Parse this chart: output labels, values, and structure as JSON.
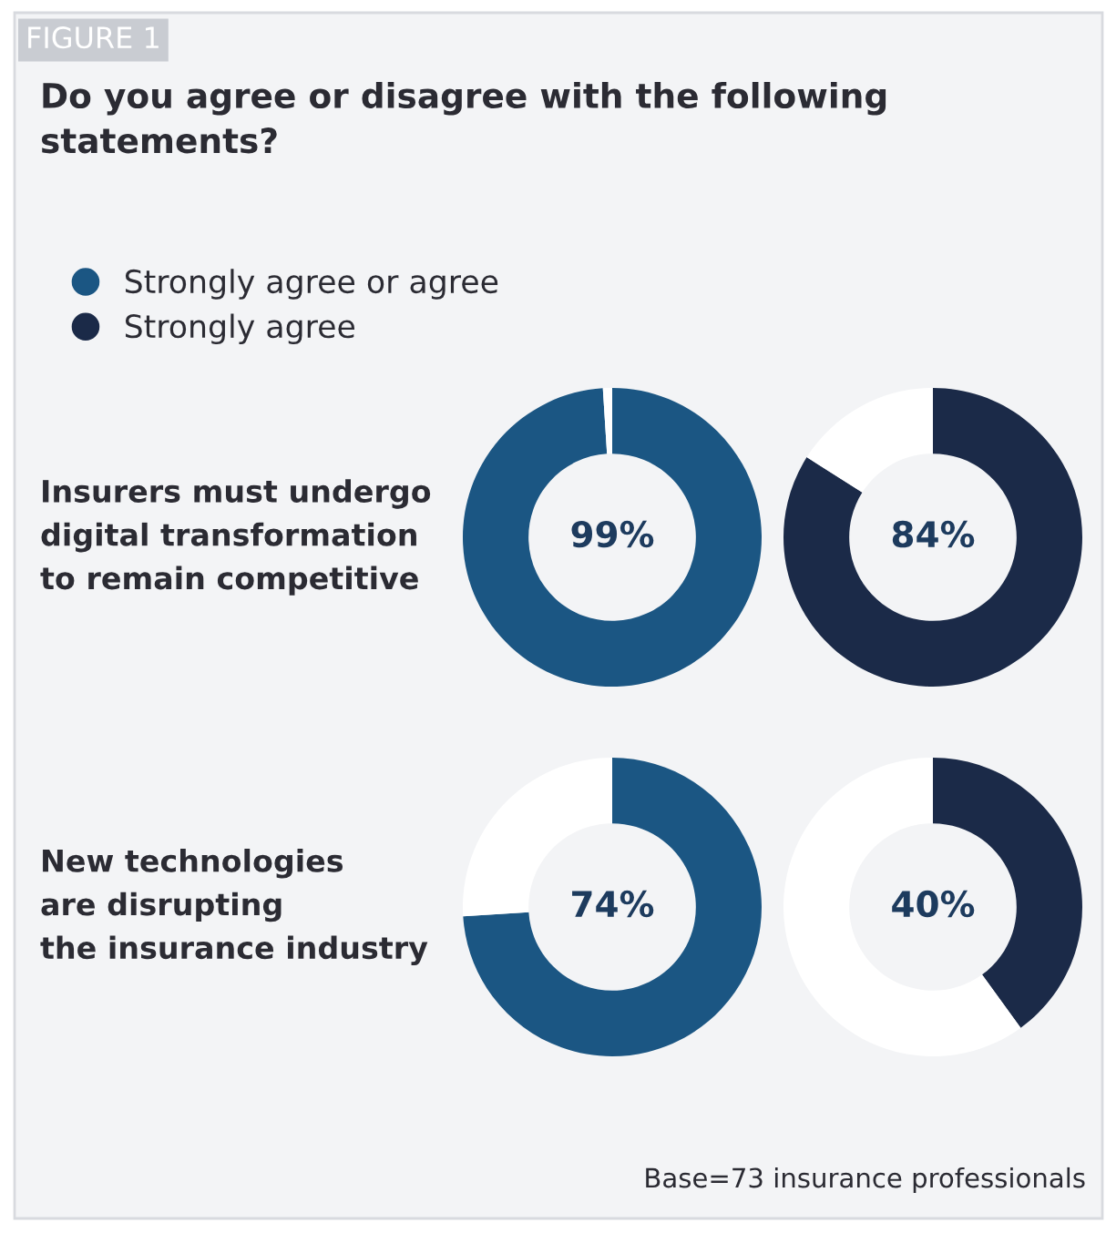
{
  "chart_data": [
    {
      "type": "other",
      "title": "Do you agree or disagree with the following statements?",
      "annotations": [
        "FIGURE 1",
        "Base=73 insurance professionals"
      ]
    },
    {
      "type": "donut",
      "title": "Insurers must undergo\ndigital transformation\nto remain competitive",
      "categories": [
        "Strongly agree or agree",
        null
      ],
      "values": [
        99,
        1
      ],
      "colors": [
        "#1b5683",
        "#ffffff"
      ],
      "value_labels": [
        "99%",
        null
      ],
      "legend": "top left"
    },
    {
      "type": "donut",
      "categories": [
        "Strongly agree",
        null
      ],
      "values": [
        84,
        16
      ],
      "colors": [
        "#1b2a48",
        "#ffffff"
      ],
      "value_labels": [
        "84%",
        null
      ],
      "legend": "top left"
    },
    {
      "type": "donut",
      "title": "New technologies\nare disrupting\nthe insurance industry",
      "categories": [
        null,
        null
      ],
      "values": [
        74,
        26
      ],
      "colors": [
        "#1b5683",
        "#ffffff"
      ],
      "value_labels": [
        "74%",
        null
      ]
    },
    {
      "type": "donut",
      "categories": [
        null,
        null
      ],
      "values": [
        40,
        60
      ],
      "colors": [
        "#1b2a48",
        "#ffffff"
      ],
      "value_labels": [
        "40%",
        null
      ]
    }
  ]
}
